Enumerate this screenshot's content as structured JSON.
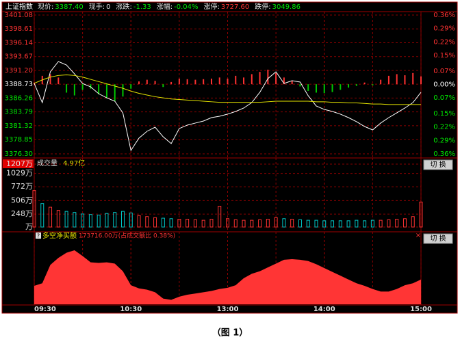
{
  "header": {
    "title": "上证指数",
    "fields": [
      {
        "label": "现价:",
        "value": "3387.40",
        "color": "#00e600"
      },
      {
        "label": "现手:",
        "value": "0",
        "color": "#e0e0e0"
      },
      {
        "label": "涨跌:",
        "value": "-1.33",
        "color": "#00e600"
      },
      {
        "label": "涨幅:",
        "value": "-0.04%",
        "color": "#00e600"
      },
      {
        "label": "涨停:",
        "value": "3727.60",
        "color": "#ff3232"
      },
      {
        "label": "跌停:",
        "value": "3049.86",
        "color": "#00e600"
      }
    ]
  },
  "chart_data": [
    {
      "type": "line",
      "x": [
        0,
        5,
        10,
        15,
        20,
        25,
        30,
        35,
        40,
        45,
        50,
        55,
        60,
        65,
        70,
        75,
        80,
        85,
        90,
        95,
        100,
        105,
        110,
        115,
        120,
        125,
        130,
        135,
        140,
        145,
        150,
        155,
        160,
        165,
        170,
        175,
        180,
        185,
        190,
        195,
        200,
        205,
        210,
        215,
        220,
        225,
        230,
        235,
        240
      ],
      "xlim": [
        0,
        240
      ],
      "ylim": [
        3376.3,
        3401.08
      ],
      "yticks": [
        3401.08,
        3398.61,
        3396.14,
        3393.67,
        {
          "value": 3391.2,
          "label": "3391.20"
        },
        3388.73,
        3386.26,
        3383.79,
        3381.32,
        3378.85,
        {
          "value": 3376.3,
          "label": "3376.30"
        }
      ],
      "y2lim": [
        -0.36,
        0.36
      ],
      "y2ticks": [
        {
          "value": 0.36,
          "label": "0.36%"
        },
        {
          "value": 0.29,
          "label": "0.29%"
        },
        {
          "value": 0.22,
          "label": "0.22%"
        },
        {
          "value": 0.15,
          "label": "0.15%"
        },
        {
          "value": 0.07,
          "label": "0.07%"
        },
        {
          "value": 0,
          "label": "0.00%"
        },
        {
          "value": -0.07,
          "label": "0.07%"
        },
        {
          "value": -0.15,
          "label": "0.15%"
        },
        {
          "value": -0.22,
          "label": "0.22%"
        },
        {
          "value": -0.29,
          "label": "0.29%"
        },
        {
          "value": -0.36,
          "label": "0.36%"
        }
      ],
      "up_color": "#ff3232",
      "down_color": "#00e600",
      "flat_color": "#ffffff",
      "grid": true,
      "series": [
        {
          "color": "#ffffff",
          "values": [
            3388.87,
            3385.45,
            3390.95,
            3392.78,
            3392.17,
            3390.58,
            3388.87,
            3388.26,
            3387.04,
            3386.3,
            3385.7,
            3383.62,
            3376.91,
            3379.11,
            3380.33,
            3381.06,
            3379.35,
            3378.13,
            3380.82,
            3381.43,
            3381.8,
            3382.16,
            3382.77,
            3383.02,
            3383.39,
            3383.87,
            3384.48,
            3385.45,
            3387.29,
            3389.73,
            3390.95,
            3388.87,
            3389.36,
            3389.12,
            3386.68,
            3384.85,
            3384.23,
            3383.87,
            3383.39,
            3382.77,
            3382.04,
            3381.18,
            3380.57,
            3381.8,
            3382.77,
            3383.62,
            3384.48,
            3385.45,
            3387.29
          ]
        },
        {
          "color": "#e6e600",
          "values": [
            3388.9,
            3389.5,
            3390.0,
            3390.3,
            3390.4,
            3390.3,
            3390.0,
            3389.6,
            3389.2,
            3388.8,
            3388.4,
            3388.0,
            3387.5,
            3387.1,
            3386.8,
            3386.5,
            3386.3,
            3386.1,
            3386.0,
            3385.9,
            3385.8,
            3385.7,
            3385.6,
            3385.5,
            3385.5,
            3385.5,
            3385.5,
            3385.5,
            3385.5,
            3385.6,
            3385.7,
            3385.7,
            3385.7,
            3385.7,
            3385.7,
            3385.6,
            3385.6,
            3385.5,
            3385.5,
            3385.4,
            3385.4,
            3385.3,
            3385.2,
            3385.2,
            3385.1,
            3385.1,
            3385.1,
            3385.1,
            3385.1
          ]
        }
      ],
      "bars": {
        "up_color": "#ff3232",
        "down_color": "#00c800",
        "values": [
          0.3,
          1.5,
          1.8,
          1.2,
          -1.5,
          -2.0,
          -1.0,
          -0.8,
          -1.8,
          -2.5,
          -3.0,
          -2.2,
          -0.8,
          0.5,
          0.8,
          0.6,
          -0.5,
          0.4,
          1.0,
          0.9,
          0.8,
          0.9,
          1.0,
          1.2,
          1.0,
          1.5,
          1.2,
          1.8,
          2.2,
          2.6,
          2.0,
          1.2,
          0.6,
          -0.4,
          -1.2,
          -1.5,
          -1.6,
          -1.4,
          -1.0,
          -0.6,
          -0.3,
          0.3,
          -0.2,
          0.8,
          1.5,
          1.8,
          1.6,
          2.0,
          1.4
        ]
      }
    },
    {
      "type": "bar",
      "title": "成交量",
      "subtitle": "4.97亿",
      "x": [
        0,
        5,
        10,
        15,
        20,
        25,
        30,
        35,
        40,
        45,
        50,
        55,
        60,
        65,
        70,
        75,
        80,
        85,
        90,
        95,
        100,
        105,
        110,
        115,
        120,
        125,
        130,
        135,
        140,
        145,
        150,
        155,
        160,
        165,
        170,
        175,
        180,
        185,
        190,
        195,
        200,
        205,
        210,
        215,
        220,
        225,
        230,
        235,
        240
      ],
      "xlim": [
        0,
        240
      ],
      "ylim": [
        0,
        1207
      ],
      "yticks": [
        {
          "value": 1207,
          "label": "1207万"
        },
        {
          "value": 1029,
          "label": "1029万"
        },
        {
          "value": 772,
          "label": "772万"
        },
        {
          "value": 506,
          "label": "506万"
        },
        {
          "value": 248,
          "label": "248万"
        },
        {
          "value": 0,
          "label": "万"
        }
      ],
      "up_color": "#ff3232",
      "down_color": "#00c8c8",
      "values": [
        700,
        450,
        380,
        320,
        300,
        280,
        250,
        240,
        230,
        260,
        280,
        300,
        270,
        220,
        200,
        180,
        170,
        160,
        150,
        150,
        140,
        130,
        150,
        400,
        160,
        140,
        130,
        130,
        140,
        150,
        180,
        160,
        150,
        140,
        130,
        130,
        120,
        120,
        120,
        120,
        130,
        120,
        130,
        130,
        140,
        150,
        160,
        200,
        480
      ]
    },
    {
      "type": "area",
      "title": "多空净买额",
      "subtitle": "173716.00万(占成交额比 0.38%)",
      "x": [
        0,
        5,
        10,
        15,
        20,
        25,
        30,
        35,
        40,
        45,
        50,
        55,
        60,
        65,
        70,
        75,
        80,
        85,
        90,
        95,
        100,
        105,
        110,
        115,
        120,
        125,
        130,
        135,
        140,
        145,
        150,
        155,
        160,
        165,
        170,
        175,
        180,
        185,
        190,
        195,
        200,
        205,
        210,
        215,
        220,
        225,
        230,
        235,
        240
      ],
      "xlim": [
        0,
        240
      ],
      "xticks": [
        {
          "value": 0,
          "label": "09:30"
        },
        {
          "value": 60,
          "label": "10:30"
        },
        {
          "value": 120,
          "label": "13:00"
        },
        {
          "value": 180,
          "label": "14:00"
        },
        {
          "value": 240,
          "label": "15:00"
        }
      ],
      "ylim": [
        0,
        100
      ],
      "color": "#ff3535",
      "values": [
        29,
        33,
        62,
        73,
        81,
        85,
        76,
        66,
        65,
        66,
        64,
        52,
        30,
        25,
        23,
        19,
        9,
        7,
        12,
        15,
        17,
        19,
        21,
        24,
        26,
        30,
        41,
        48,
        52,
        58,
        64,
        70,
        71,
        70,
        68,
        63,
        57,
        51,
        45,
        39,
        33,
        29,
        24,
        20,
        20,
        24,
        30,
        33,
        39
      ]
    }
  ],
  "buttons": [
    "切 换",
    "切 换"
  ],
  "help": "?",
  "close": "×",
  "caption": "（图 1）"
}
